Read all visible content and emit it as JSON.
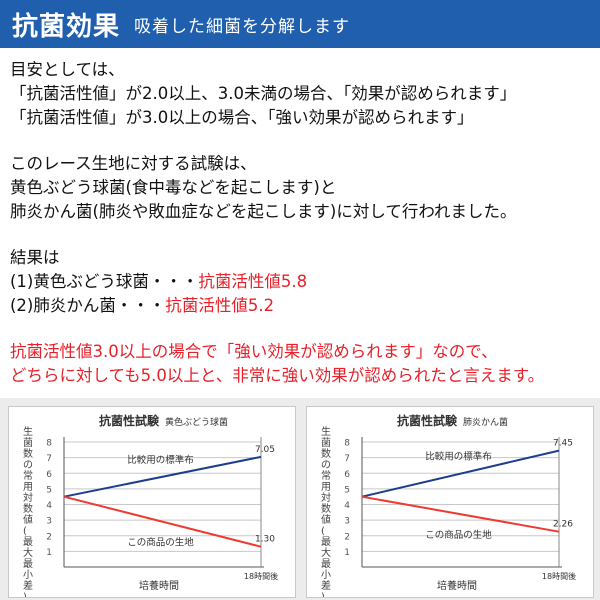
{
  "header": {
    "title": "抗菌効果",
    "subtitle": "吸着した細菌を分解します"
  },
  "body": {
    "lines": [
      "目安としては、",
      "「抗菌活性値」が2.0以上、3.0未満の場合、「効果が認められます」",
      "「抗菌活性値」が3.0以上の場合、「強い効果が認められます」",
      "",
      "このレース生地に対する試験は、",
      "黄色ぶどう球菌(食中毒などを起こします)と",
      "肺炎かん菌(肺炎や敗血症などを起こします)に対して行われました。",
      "",
      "結果は"
    ],
    "result1_prefix": "(1)黄色ぶどう球菌・・・",
    "result1_value": "抗菌活性値5.8",
    "result2_prefix": "(2)肺炎かん菌・・・",
    "result2_value": "抗菌活性値5.2",
    "conclusion1": "抗菌活性値3.0以上の場合で「強い効果が認められます」なので、",
    "conclusion2": "どちらに対しても5.0以上と、非常に強い効果が認められたと言えます。"
  },
  "colors": {
    "header_bg": "#1f5fae",
    "accent_red": "#e8202a",
    "line_blue": "#1d3e8e",
    "line_red": "#ee3a32",
    "panel_bg": "#ececec"
  },
  "chart_data": [
    {
      "type": "line",
      "title": "抗菌性試験",
      "subtitle": "黄色ぶどう球菌",
      "xlabel": "培養時間",
      "ylabel": "生菌数の常用対数値(最大最小差)",
      "x_end_label": "18時間後",
      "ylim": [
        0,
        8
      ],
      "yticks": [
        1,
        2,
        3,
        4,
        5,
        6,
        7,
        8
      ],
      "x": [
        0,
        18
      ],
      "series": [
        {
          "name": "比較用の標準布",
          "values": [
            4.5,
            7.05
          ],
          "end_label": "7.05",
          "color": "#1d3e8e"
        },
        {
          "name": "この商品の生地",
          "values": [
            4.5,
            1.3
          ],
          "end_label": "1.30",
          "color": "#ee3a32"
        }
      ]
    },
    {
      "type": "line",
      "title": "抗菌性試験",
      "subtitle": "肺炎かん菌",
      "xlabel": "培養時間",
      "ylabel": "生菌数の常用対数値(最大最小差)",
      "x_end_label": "18時間後",
      "ylim": [
        0,
        8
      ],
      "yticks": [
        1,
        2,
        3,
        4,
        5,
        6,
        7,
        8
      ],
      "x": [
        0,
        18
      ],
      "series": [
        {
          "name": "比較用の標準布",
          "values": [
            4.5,
            7.45
          ],
          "end_label": "7.45",
          "color": "#1d3e8e"
        },
        {
          "name": "この商品の生地",
          "values": [
            4.5,
            2.26
          ],
          "end_label": "2.26",
          "color": "#ee3a32"
        }
      ]
    }
  ]
}
